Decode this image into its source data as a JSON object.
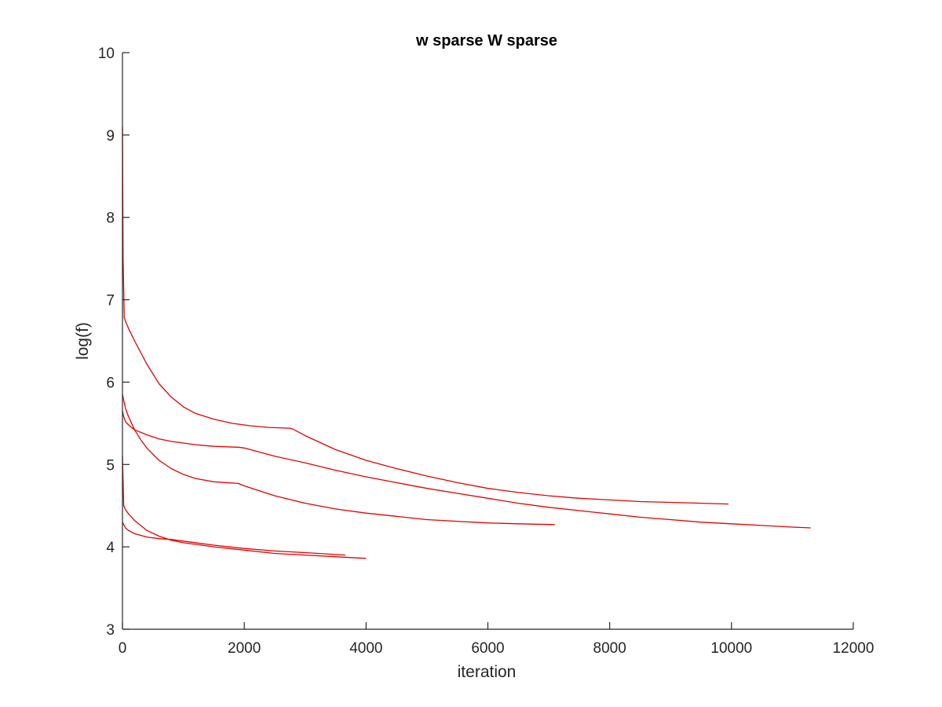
{
  "chart_data": {
    "type": "line",
    "title": "w sparse W sparse",
    "xlabel": "iteration",
    "ylabel": "log(f)",
    "xlim": [
      0,
      12000
    ],
    "ylim": [
      3,
      10
    ],
    "xticks": [
      0,
      2000,
      4000,
      6000,
      8000,
      10000,
      12000
    ],
    "yticks": [
      3,
      4,
      5,
      6,
      7,
      8,
      9,
      10
    ],
    "grid": false,
    "legend": "none",
    "color": "#e60000",
    "series": [
      {
        "x": [
          0,
          10,
          30,
          60,
          100,
          200,
          400,
          600,
          800,
          1000,
          1200,
          1500,
          1800,
          2100,
          2400,
          2750,
          2800,
          3000,
          3500,
          4000,
          4500,
          5000,
          5500,
          6000,
          6500,
          7000,
          7500,
          8000,
          8500,
          9000,
          9500,
          9950
        ],
        "y": [
          9.1,
          7.5,
          6.78,
          6.72,
          6.65,
          6.5,
          6.22,
          5.98,
          5.82,
          5.7,
          5.62,
          5.55,
          5.5,
          5.47,
          5.45,
          5.44,
          5.43,
          5.35,
          5.18,
          5.05,
          4.95,
          4.86,
          4.78,
          4.71,
          4.66,
          4.62,
          4.59,
          4.57,
          4.55,
          4.54,
          4.53,
          4.52
        ]
      },
      {
        "x": [
          0,
          20,
          50,
          100,
          200,
          400,
          600,
          800,
          1000,
          1200,
          1500,
          1900,
          2000,
          2500,
          3000,
          3500,
          4000,
          4500,
          5000,
          5500,
          6000,
          6500,
          7000,
          7500,
          8000,
          8500,
          9000,
          9500,
          10000,
          10500,
          11000,
          11300
        ],
        "y": [
          5.65,
          5.58,
          5.52,
          5.48,
          5.42,
          5.36,
          5.31,
          5.28,
          5.26,
          5.24,
          5.22,
          5.21,
          5.2,
          5.1,
          5.02,
          4.93,
          4.85,
          4.78,
          4.71,
          4.65,
          4.59,
          4.53,
          4.48,
          4.44,
          4.4,
          4.36,
          4.33,
          4.3,
          4.28,
          4.26,
          4.24,
          4.23
        ]
      },
      {
        "x": [
          0,
          20,
          50,
          100,
          200,
          300,
          400,
          600,
          800,
          1000,
          1200,
          1500,
          1900,
          2000,
          2500,
          3000,
          3500,
          4000,
          4500,
          5000,
          5500,
          6000,
          6500,
          7100
        ],
        "y": [
          5.85,
          5.78,
          5.68,
          5.58,
          5.42,
          5.3,
          5.2,
          5.05,
          4.95,
          4.88,
          4.83,
          4.79,
          4.77,
          4.74,
          4.62,
          4.53,
          4.46,
          4.41,
          4.37,
          4.33,
          4.31,
          4.29,
          4.28,
          4.27
        ]
      },
      {
        "x": [
          0,
          20,
          50,
          100,
          200,
          400,
          600,
          800,
          1000,
          1500,
          2000,
          2500,
          3000,
          3500,
          4000
        ],
        "y": [
          5.1,
          4.5,
          4.45,
          4.4,
          4.32,
          4.2,
          4.13,
          4.08,
          4.05,
          4.0,
          3.96,
          3.92,
          3.9,
          3.88,
          3.86
        ]
      },
      {
        "x": [
          0,
          20,
          50,
          100,
          200,
          400,
          600,
          800,
          1000,
          1500,
          2000,
          2500,
          3000,
          3660
        ],
        "y": [
          4.3,
          4.27,
          4.23,
          4.2,
          4.16,
          4.12,
          4.1,
          4.09,
          4.07,
          4.02,
          3.98,
          3.95,
          3.93,
          3.9
        ]
      }
    ]
  }
}
